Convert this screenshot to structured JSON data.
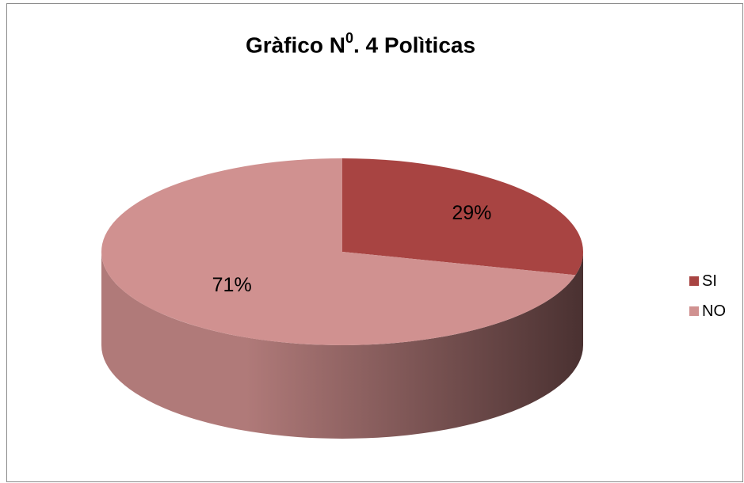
{
  "chart_data": {
    "type": "pie",
    "title": "Gràfico Nº. 4 Polìticas",
    "title_parts": {
      "before": "Gràfico N",
      "sup": "0",
      "after": ". 4 Polìticas"
    },
    "categories": [
      "SI",
      "NO"
    ],
    "values": [
      29,
      71
    ],
    "data_labels": [
      "29%",
      "71%"
    ],
    "colors": [
      "#a84442",
      "#d09190"
    ],
    "side_colors": {
      "dark": "#4a3131",
      "light": "#b07a79"
    },
    "legend_position": "right",
    "three_d": true
  }
}
